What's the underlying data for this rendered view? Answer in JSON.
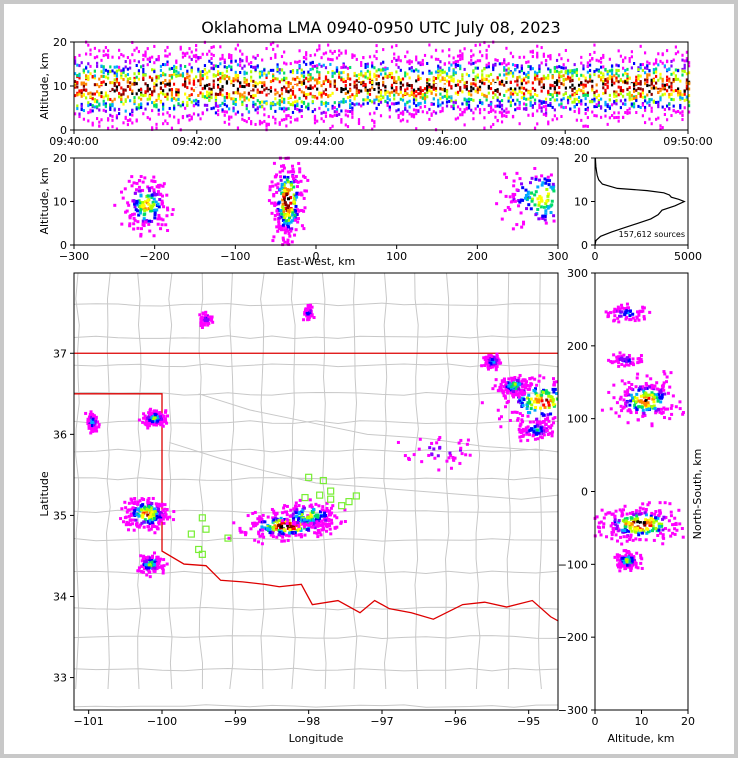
{
  "chart_data": [
    {
      "panel": "time-altitude",
      "type": "heatmap",
      "title": "Oklahoma LMA 0940-0950 UTC July 08, 2023",
      "ylabel": "Altitude, km",
      "xlabel": "",
      "x_tick_labels": [
        "09:40:00",
        "09:42:00",
        "09:44:00",
        "09:46:00",
        "09:48:00",
        "09:50:00"
      ],
      "y_tick_labels": [
        "0",
        "10",
        "20"
      ],
      "x": [
        "09:40:00",
        "09:41:00",
        "09:42:00",
        "09:43:00",
        "09:44:00",
        "09:45:00",
        "09:46:00",
        "09:47:00",
        "09:48:00",
        "09:49:00",
        "09:50:00"
      ],
      "altitude_center_km": [
        9.5,
        9.5,
        10,
        9.5,
        9.5,
        10,
        10,
        10,
        10,
        10,
        10
      ],
      "altitude_spread_km": [
        5,
        5,
        5,
        5,
        5,
        4.5,
        4.5,
        4.5,
        4.5,
        4.5,
        4.5
      ],
      "xlim": [
        "09:40:00",
        "09:50:00"
      ],
      "ylim": [
        0,
        20
      ]
    },
    {
      "panel": "east-west-altitude",
      "type": "heatmap",
      "xlabel": "East-West, km",
      "ylabel": "Altitude, km",
      "x_tick_labels": [
        "−300",
        "−200",
        "−100",
        "0",
        "100",
        "200",
        "300"
      ],
      "y_tick_labels": [
        "0",
        "10",
        "20"
      ],
      "xlim": [
        -300,
        300
      ],
      "ylim": [
        0,
        20
      ],
      "clusters": [
        {
          "x": -210,
          "alt": 9,
          "spread_x": 14,
          "spread_alt": 3,
          "density": 0.7
        },
        {
          "x": -35,
          "alt": 10,
          "spread_x": 10,
          "spread_alt": 5,
          "density": 1.0
        },
        {
          "x": 280,
          "alt": 11,
          "spread_x": 25,
          "spread_alt": 4,
          "density": 0.6
        }
      ]
    },
    {
      "panel": "altitude-histogram",
      "type": "line",
      "xlim": [
        0,
        5000
      ],
      "ylim": [
        0,
        20
      ],
      "x_tick_labels": [
        "0",
        "5000"
      ],
      "y_tick_labels": [
        "0",
        "10",
        "20"
      ],
      "annotation": "157,612 sources",
      "altitude_km": [
        0,
        1,
        2,
        3,
        4,
        5,
        6,
        7,
        8,
        9,
        10,
        10.5,
        11,
        11.5,
        12,
        12.5,
        13,
        14,
        15,
        16,
        17,
        18,
        19,
        20
      ],
      "count": [
        0,
        50,
        300,
        900,
        1600,
        2300,
        3000,
        3400,
        3600,
        4300,
        4800,
        4500,
        4100,
        4000,
        3700,
        2800,
        1200,
        400,
        200,
        120,
        80,
        50,
        30,
        20
      ]
    },
    {
      "panel": "plan-view",
      "type": "scatter",
      "xlabel": "Longitude",
      "ylabel": "Latitude",
      "x_tick_labels": [
        "−101",
        "−100",
        "−99",
        "−98",
        "−97",
        "−96",
        "−95"
      ],
      "y_tick_labels": [
        "33",
        "34",
        "35",
        "36",
        "37"
      ],
      "xlim": [
        -101.2,
        -94.6
      ],
      "ylim": [
        32.6,
        37.99
      ],
      "station_color": "#77ee33",
      "border_color": "#dd0000",
      "stations": [
        {
          "lon": -98.0,
          "lat": 35.47
        },
        {
          "lon": -97.8,
          "lat": 35.43
        },
        {
          "lon": -98.05,
          "lat": 35.22
        },
        {
          "lon": -97.85,
          "lat": 35.25
        },
        {
          "lon": -97.7,
          "lat": 35.2
        },
        {
          "lon": -97.55,
          "lat": 35.12
        },
        {
          "lon": -97.45,
          "lat": 35.17
        },
        {
          "lon": -97.35,
          "lat": 35.24
        },
        {
          "lon": -99.45,
          "lat": 34.97
        },
        {
          "lon": -99.6,
          "lat": 34.77
        },
        {
          "lon": -99.4,
          "lat": 34.83
        },
        {
          "lon": -99.5,
          "lat": 34.58
        },
        {
          "lon": -99.45,
          "lat": 34.52
        },
        {
          "lon": -99.1,
          "lat": 34.72
        },
        {
          "lon": -97.7,
          "lat": 35.3
        }
      ],
      "clusters": [
        {
          "lon": -98.3,
          "lat": 34.87,
          "spread_lon": 0.3,
          "spread_lat": 0.08,
          "density": 1.0
        },
        {
          "lon": -98.0,
          "lat": 35.0,
          "spread_lon": 0.2,
          "spread_lat": 0.08,
          "density": 0.6
        },
        {
          "lon": -100.2,
          "lat": 35.02,
          "spread_lon": 0.15,
          "spread_lat": 0.1,
          "density": 0.8
        },
        {
          "lon": -100.15,
          "lat": 34.4,
          "spread_lon": 0.08,
          "spread_lat": 0.06,
          "density": 0.5
        },
        {
          "lon": -100.1,
          "lat": 36.2,
          "spread_lon": 0.08,
          "spread_lat": 0.05,
          "density": 0.5
        },
        {
          "lon": -94.8,
          "lat": 36.4,
          "spread_lon": 0.3,
          "spread_lat": 0.15,
          "density": 0.8
        },
        {
          "lon": -95.2,
          "lat": 36.6,
          "spread_lon": 0.1,
          "spread_lat": 0.06,
          "density": 0.5
        },
        {
          "lon": -95.5,
          "lat": 36.9,
          "spread_lon": 0.06,
          "spread_lat": 0.05,
          "density": 0.3
        },
        {
          "lon": -94.9,
          "lat": 36.05,
          "spread_lon": 0.12,
          "spread_lat": 0.06,
          "density": 0.3
        },
        {
          "lon": -100.95,
          "lat": 36.15,
          "spread_lon": 0.04,
          "spread_lat": 0.06,
          "density": 0.3
        },
        {
          "lon": -98.0,
          "lat": 37.5,
          "spread_lon": 0.03,
          "spread_lat": 0.04,
          "density": 0.2
        },
        {
          "lon": -99.4,
          "lat": 37.42,
          "spread_lon": 0.04,
          "spread_lat": 0.04,
          "density": 0.15
        },
        {
          "lon": -96.2,
          "lat": 35.8,
          "spread_lon": 0.3,
          "spread_lat": 0.1,
          "density": 0.1
        }
      ]
    },
    {
      "panel": "altitude-north-south",
      "type": "heatmap",
      "xlabel": "Altitude, km",
      "ylabel": "North-South, km",
      "x_tick_labels": [
        "0",
        "10",
        "20"
      ],
      "y_tick_labels": [
        "−300",
        "−200",
        "−100",
        "0",
        "100",
        "200",
        "300"
      ],
      "xlim": [
        0,
        20
      ],
      "ylim": [
        -300,
        300
      ],
      "clusters": [
        {
          "alt": 11,
          "y": 125,
          "spread_alt": 3.5,
          "spread_y": 14,
          "density": 0.8
        },
        {
          "alt": 10,
          "y": -45,
          "spread_alt": 4.5,
          "spread_y": 12,
          "density": 1.0
        },
        {
          "alt": 7,
          "y": -95,
          "spread_alt": 1.2,
          "spread_y": 6,
          "density": 0.5
        },
        {
          "alt": 7,
          "y": 245,
          "spread_alt": 2.5,
          "spread_y": 6,
          "density": 0.2
        },
        {
          "alt": 7,
          "y": 180,
          "spread_alt": 2,
          "spread_y": 4,
          "density": 0.15
        }
      ]
    }
  ]
}
